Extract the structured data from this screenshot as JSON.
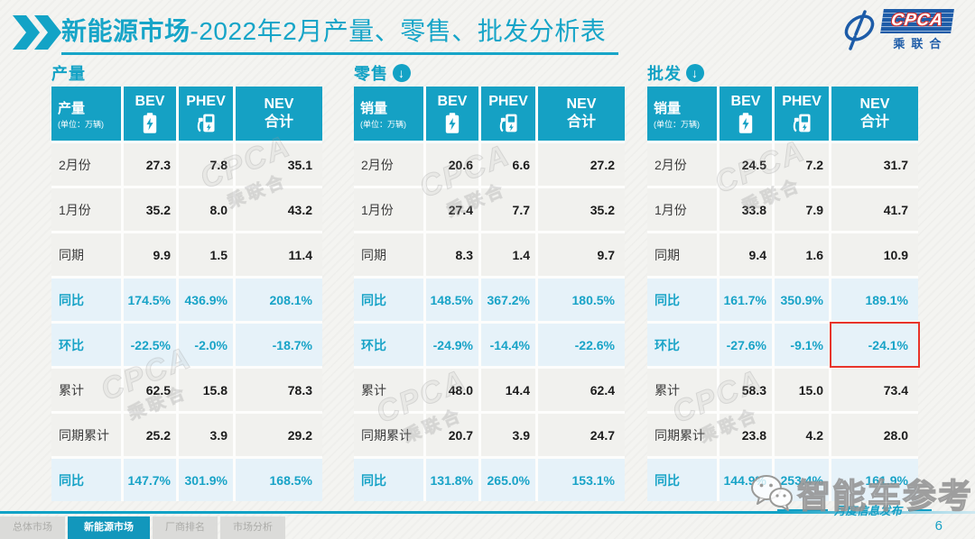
{
  "header": {
    "title_primary": "新能源市场",
    "title_rest": "-2022年2月产量、零售、批发分析表",
    "logo": {
      "name": "CPCA",
      "sub": "乘联合"
    }
  },
  "icons": {
    "header_marker": "double-right-chevron-icon",
    "section_marker": "circled-down-arrow-icon",
    "bev_column": "battery-icon",
    "phev_column": "charging-station-icon",
    "brand": "wechat-icon",
    "logo_mark": "cpca-swirl-icon"
  },
  "tables": [
    {
      "section": "产量",
      "arrow": false,
      "unit": {
        "label": "产量",
        "sub": "(单位：万辆)"
      },
      "columns": [
        {
          "label": "BEV",
          "icon": "icon-battery"
        },
        {
          "label": "PHEV",
          "icon": "icon-charger"
        },
        {
          "label": "NEV",
          "label2": "合计",
          "icon": null
        }
      ],
      "rows": [
        {
          "label": "2月份",
          "style": "normal",
          "values": [
            "27.3",
            "7.8",
            "35.1"
          ]
        },
        {
          "label": "1月份",
          "style": "normal",
          "values": [
            "35.2",
            "8.0",
            "43.2"
          ]
        },
        {
          "label": "同期",
          "style": "normal",
          "values": [
            "9.9",
            "1.5",
            "11.4"
          ]
        },
        {
          "label": "同比",
          "style": "highlight",
          "values": [
            "174.5%",
            "436.9%",
            "208.1%"
          ]
        },
        {
          "label": "环比",
          "style": "highlight",
          "values": [
            "-22.5%",
            "-2.0%",
            "-18.7%"
          ]
        },
        {
          "label": "累计",
          "style": "normal",
          "values": [
            "62.5",
            "15.8",
            "78.3"
          ]
        },
        {
          "label": "同期累计",
          "style": "normal",
          "values": [
            "25.2",
            "3.9",
            "29.2"
          ]
        },
        {
          "label": "同比",
          "style": "highlight",
          "values": [
            "147.7%",
            "301.9%",
            "168.5%"
          ]
        }
      ]
    },
    {
      "section": "零售",
      "arrow": true,
      "unit": {
        "label": "销量",
        "sub": "(单位：万辆)"
      },
      "columns": [
        {
          "label": "BEV",
          "icon": "icon-battery"
        },
        {
          "label": "PHEV",
          "icon": "icon-charger"
        },
        {
          "label": "NEV",
          "label2": "合计",
          "icon": null
        }
      ],
      "rows": [
        {
          "label": "2月份",
          "style": "normal",
          "values": [
            "20.6",
            "6.6",
            "27.2"
          ]
        },
        {
          "label": "1月份",
          "style": "normal",
          "values": [
            "27.4",
            "7.7",
            "35.2"
          ]
        },
        {
          "label": "同期",
          "style": "normal",
          "values": [
            "8.3",
            "1.4",
            "9.7"
          ]
        },
        {
          "label": "同比",
          "style": "highlight",
          "values": [
            "148.5%",
            "367.2%",
            "180.5%"
          ]
        },
        {
          "label": "环比",
          "style": "highlight",
          "values": [
            "-24.9%",
            "-14.4%",
            "-22.6%"
          ]
        },
        {
          "label": "累计",
          "style": "normal",
          "values": [
            "48.0",
            "14.4",
            "62.4"
          ]
        },
        {
          "label": "同期累计",
          "style": "normal",
          "values": [
            "20.7",
            "3.9",
            "24.7"
          ]
        },
        {
          "label": "同比",
          "style": "highlight",
          "values": [
            "131.8%",
            "265.0%",
            "153.1%"
          ]
        }
      ]
    },
    {
      "section": "批发",
      "arrow": true,
      "unit": {
        "label": "销量",
        "sub": "(单位：万辆)"
      },
      "columns": [
        {
          "label": "BEV",
          "icon": "icon-battery"
        },
        {
          "label": "PHEV",
          "icon": "icon-charger"
        },
        {
          "label": "NEV",
          "label2": "合计",
          "icon": null
        }
      ],
      "rows": [
        {
          "label": "2月份",
          "style": "normal",
          "values": [
            "24.5",
            "7.2",
            "31.7"
          ]
        },
        {
          "label": "1月份",
          "style": "normal",
          "values": [
            "33.8",
            "7.9",
            "41.7"
          ]
        },
        {
          "label": "同期",
          "style": "normal",
          "values": [
            "9.4",
            "1.6",
            "10.9"
          ]
        },
        {
          "label": "同比",
          "style": "highlight",
          "values": [
            "161.7%",
            "350.9%",
            "189.1%"
          ]
        },
        {
          "label": "环比",
          "style": "highlight",
          "values": [
            "-27.6%",
            "-9.1%",
            "-24.1%"
          ]
        },
        {
          "label": "累计",
          "style": "normal",
          "values": [
            "58.3",
            "15.0",
            "73.4"
          ]
        },
        {
          "label": "同期累计",
          "style": "normal",
          "values": [
            "23.8",
            "4.2",
            "28.0"
          ]
        },
        {
          "label": "同比",
          "style": "highlight",
          "values": [
            "144.9%",
            "253.4%",
            "161.9%"
          ]
        }
      ]
    }
  ],
  "highlight_cell": {
    "table": 2,
    "row": 4,
    "col": 2,
    "color": "#E8342A"
  },
  "watermark": {
    "cpca": "CPCA",
    "cpca_sub": "乘联合",
    "brand": "智能车参考"
  },
  "footer": {
    "note": "月度信息发布",
    "page_number": "6"
  },
  "footer_tabs": [
    {
      "label": "总体市场",
      "active": false
    },
    {
      "label": "新能源市场",
      "active": true
    },
    {
      "label": "厂商排名",
      "active": false
    },
    {
      "label": "市场分析",
      "active": false
    }
  ],
  "colors": {
    "accent": "#14A2C5",
    "highlight_bg": "#E6F2F9",
    "row_bg": "#F1F1EE",
    "header_bg": "#15A1C4",
    "red_box": "#E8342A",
    "logo_blue": "#1D5CA8"
  }
}
